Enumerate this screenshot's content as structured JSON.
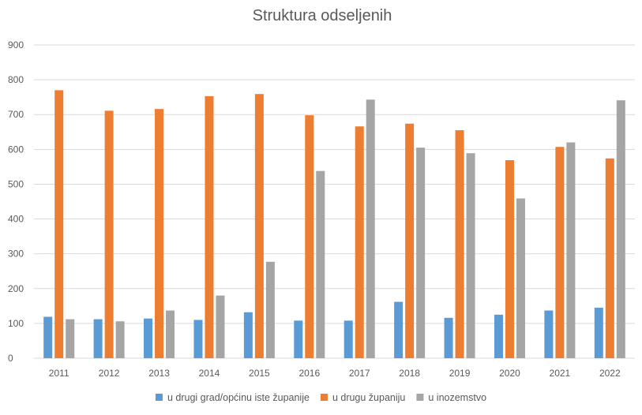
{
  "chart_data": {
    "type": "bar",
    "title": "Struktura odseljenih",
    "xlabel": "",
    "ylabel": "",
    "categories": [
      "2011",
      "2012",
      "2013",
      "2014",
      "2015",
      "2016",
      "2017",
      "2018",
      "2019",
      "2020",
      "2021",
      "2022"
    ],
    "series": [
      {
        "name": "u drugi grad/općinu iste županije",
        "color": "#5b9bd5",
        "values": [
          119,
          112,
          114,
          110,
          132,
          108,
          108,
          162,
          116,
          125,
          137,
          145
        ]
      },
      {
        "name": "u drugu županiju",
        "color": "#ed7d31",
        "values": [
          770,
          711,
          716,
          753,
          759,
          698,
          666,
          674,
          655,
          569,
          607,
          574
        ]
      },
      {
        "name": "u inozemstvo",
        "color": "#a5a5a5",
        "values": [
          112,
          106,
          137,
          180,
          277,
          538,
          743,
          605,
          589,
          459,
          620,
          741
        ]
      }
    ],
    "ylim": [
      0,
      900
    ],
    "yticks": [
      0,
      100,
      200,
      300,
      400,
      500,
      600,
      700,
      800,
      900
    ],
    "grid": true,
    "legend_position": "bottom"
  }
}
